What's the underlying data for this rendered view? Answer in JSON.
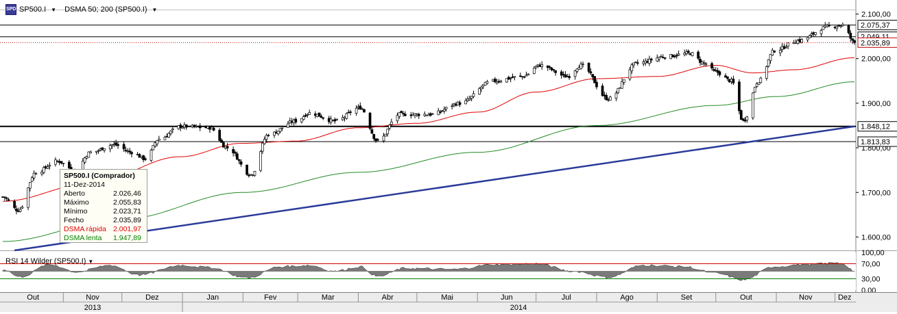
{
  "header": {
    "symbol": "SP500.I",
    "indicator": "DSMA 50; 200 (SP500.I)"
  },
  "tooltip": {
    "title": "SP500.I (Comprador)",
    "date": "11-Dez-2014",
    "rows": [
      {
        "label": "Aberto",
        "value": "2.026,46",
        "color": "#000000"
      },
      {
        "label": "Máximo",
        "value": "2.055,83",
        "color": "#000000"
      },
      {
        "label": "Mínimo",
        "value": "2.023,71",
        "color": "#000000"
      },
      {
        "label": "Fecho",
        "value": "2.035,89",
        "color": "#000000"
      },
      {
        "label": "DSMA rápida",
        "value": "2.001,97",
        "color": "#e00000"
      },
      {
        "label": "DSMA lenta",
        "value": "1.947,89",
        "color": "#008000"
      }
    ]
  },
  "rsi_panel": {
    "label": "RSI 14 Wilder (SP500.I)",
    "y_ticks": [
      "100,00",
      "70,00",
      "30,00",
      "0,00"
    ]
  },
  "colors": {
    "fast_ma": "#e00000",
    "slow_ma": "#228b22",
    "trendline": "#2a3a9a",
    "candle_up": "#ffffff",
    "candle_down": "#000000",
    "rsi_fill": "#7a7a7a"
  },
  "chart_data": {
    "type": "candlestick",
    "instrument": "SP500.I",
    "x_axis": {
      "months": [
        "Out",
        "Nov",
        "Dez",
        "Jan",
        "Fev",
        "Mar",
        "Abr",
        "Mai",
        "Jun",
        "Jul",
        "Ago",
        "Set",
        "Out",
        "Nov",
        "Dez"
      ],
      "years": [
        "2013",
        "2014"
      ],
      "start": "2013-10-01",
      "end": "2014-12-11"
    },
    "y_axis": {
      "ylim": [
        1570,
        2110
      ],
      "ticks": [
        "2.100,00",
        "2.000,00",
        "1.900,00",
        "1.800,00",
        "1.700,00",
        "1.600,00"
      ],
      "tick_values": [
        2100,
        2000,
        1900,
        1800,
        1700,
        1600
      ]
    },
    "horizontal_levels": [
      {
        "value": 2075.37,
        "label": "2.075,37",
        "style": "solid"
      },
      {
        "value": 2049.11,
        "label": "2.049,11",
        "style": "solid"
      },
      {
        "value": 2035.89,
        "label": "2.035,89",
        "style": "dotted-red"
      },
      {
        "value": 1848.12,
        "label": "1.848,12",
        "style": "thick"
      },
      {
        "value": 1813.83,
        "label": "1.813,83",
        "style": "solid"
      }
    ],
    "trendline": {
      "from": [
        "2013-10-07",
        1570
      ],
      "to": [
        "2014-12-11",
        1848
      ]
    },
    "close_anchors": [
      [
        "2013-10-01",
        1690
      ],
      [
        "2013-10-09",
        1660
      ],
      [
        "2013-10-18",
        1745
      ],
      [
        "2013-10-29",
        1770
      ],
      [
        "2013-11-07",
        1750
      ],
      [
        "2013-11-15",
        1790
      ],
      [
        "2013-11-27",
        1807
      ],
      [
        "2013-12-06",
        1790
      ],
      [
        "2013-12-13",
        1775
      ],
      [
        "2013-12-20",
        1820
      ],
      [
        "2013-12-31",
        1848
      ],
      [
        "2014-01-15",
        1845
      ],
      [
        "2014-01-24",
        1800
      ],
      [
        "2014-02-05",
        1740
      ],
      [
        "2014-02-14",
        1830
      ],
      [
        "2014-02-28",
        1860
      ],
      [
        "2014-03-07",
        1878
      ],
      [
        "2014-03-20",
        1860
      ],
      [
        "2014-04-02",
        1890
      ],
      [
        "2014-04-11",
        1815
      ],
      [
        "2014-04-22",
        1875
      ],
      [
        "2014-05-08",
        1875
      ],
      [
        "2014-05-23",
        1900
      ],
      [
        "2014-06-09",
        1950
      ],
      [
        "2014-06-24",
        1960
      ],
      [
        "2014-07-03",
        1985
      ],
      [
        "2014-07-17",
        1960
      ],
      [
        "2014-07-24",
        1985
      ],
      [
        "2014-08-07",
        1910
      ],
      [
        "2014-08-22",
        1990
      ],
      [
        "2014-09-05",
        2005
      ],
      [
        "2014-09-18",
        2012
      ],
      [
        "2014-09-25",
        1990
      ],
      [
        "2014-10-01",
        1970
      ],
      [
        "2014-10-09",
        1950
      ],
      [
        "2014-10-15",
        1860
      ],
      [
        "2014-10-23",
        1950
      ],
      [
        "2014-10-31",
        2018
      ],
      [
        "2014-11-12",
        2040
      ],
      [
        "2014-11-28",
        2072
      ],
      [
        "2014-12-05",
        2075
      ],
      [
        "2014-12-11",
        2036
      ]
    ],
    "fast_ma_anchors": [
      [
        "2013-10-01",
        1680
      ],
      [
        "2013-11-15",
        1720
      ],
      [
        "2013-12-31",
        1780
      ],
      [
        "2014-01-31",
        1810
      ],
      [
        "2014-02-28",
        1815
      ],
      [
        "2014-04-01",
        1845
      ],
      [
        "2014-05-01",
        1855
      ],
      [
        "2014-06-01",
        1880
      ],
      [
        "2014-07-01",
        1925
      ],
      [
        "2014-08-01",
        1955
      ],
      [
        "2014-09-01",
        1960
      ],
      [
        "2014-10-01",
        1985
      ],
      [
        "2014-10-20",
        1968
      ],
      [
        "2014-11-10",
        1975
      ],
      [
        "2014-12-11",
        2002
      ]
    ],
    "slow_ma_anchors": [
      [
        "2013-10-01",
        1590
      ],
      [
        "2013-12-01",
        1640
      ],
      [
        "2014-02-01",
        1700
      ],
      [
        "2014-04-01",
        1745
      ],
      [
        "2014-06-01",
        1790
      ],
      [
        "2014-08-01",
        1850
      ],
      [
        "2014-10-01",
        1895
      ],
      [
        "2014-11-01",
        1915
      ],
      [
        "2014-12-11",
        1948
      ]
    ],
    "rsi": {
      "levels": [
        70,
        30
      ],
      "ylim": [
        0,
        100
      ],
      "anchors": [
        [
          "2013-10-01",
          55
        ],
        [
          "2013-10-10",
          35
        ],
        [
          "2013-10-25",
          68
        ],
        [
          "2013-11-08",
          48
        ],
        [
          "2013-11-25",
          66
        ],
        [
          "2013-12-10",
          40
        ],
        [
          "2013-12-31",
          66
        ],
        [
          "2014-01-15",
          60
        ],
        [
          "2014-02-03",
          32
        ],
        [
          "2014-02-20",
          62
        ],
        [
          "2014-03-07",
          66
        ],
        [
          "2014-03-20",
          50
        ],
        [
          "2014-04-02",
          62
        ],
        [
          "2014-04-11",
          36
        ],
        [
          "2014-04-25",
          58
        ],
        [
          "2014-05-20",
          55
        ],
        [
          "2014-06-10",
          68
        ],
        [
          "2014-07-01",
          70
        ],
        [
          "2014-07-20",
          50
        ],
        [
          "2014-08-07",
          34
        ],
        [
          "2014-08-25",
          66
        ],
        [
          "2014-09-15",
          62
        ],
        [
          "2014-10-01",
          45
        ],
        [
          "2014-10-15",
          27
        ],
        [
          "2014-10-31",
          62
        ],
        [
          "2014-11-15",
          68
        ],
        [
          "2014-12-05",
          72
        ],
        [
          "2014-12-11",
          50
        ]
      ]
    }
  }
}
